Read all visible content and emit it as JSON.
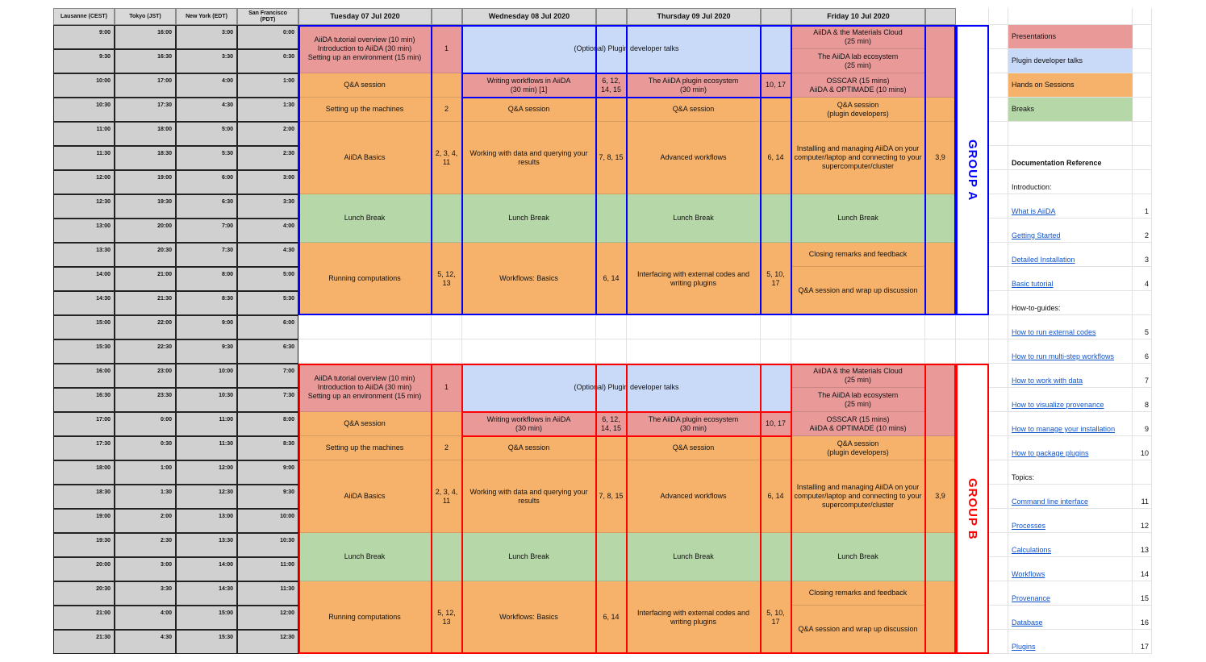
{
  "time_zones": [
    "Lausanne (CEST)",
    "Tokyo (JST)",
    "New York (EDT)",
    "San Francisco\n(PDT)"
  ],
  "days": [
    "Tuesday 07 Jul 2020",
    "Wednesday 08 Jul 2020",
    "Thursday 09 Jul 2020",
    "Friday 10 Jul 2020"
  ],
  "time_rows": [
    [
      "9:00",
      "16:00",
      "3:00",
      "0:00"
    ],
    [
      "9:30",
      "16:30",
      "3:30",
      "0:30"
    ],
    [
      "10:00",
      "17:00",
      "4:00",
      "1:00"
    ],
    [
      "10:30",
      "17:30",
      "4:30",
      "1:30"
    ],
    [
      "11:00",
      "18:00",
      "5:00",
      "2:00"
    ],
    [
      "11:30",
      "18:30",
      "5:30",
      "2:30"
    ],
    [
      "12:00",
      "19:00",
      "6:00",
      "3:00"
    ],
    [
      "12:30",
      "19:30",
      "6:30",
      "3:30"
    ],
    [
      "13:00",
      "20:00",
      "7:00",
      "4:00"
    ],
    [
      "13:30",
      "20:30",
      "7:30",
      "4:30"
    ],
    [
      "14:00",
      "21:00",
      "8:00",
      "5:00"
    ],
    [
      "14:30",
      "21:30",
      "8:30",
      "5:30"
    ],
    [
      "15:00",
      "22:00",
      "9:00",
      "6:00"
    ],
    [
      "15:30",
      "22:30",
      "9:30",
      "6:30"
    ],
    [
      "16:00",
      "23:00",
      "10:00",
      "7:00"
    ],
    [
      "16:30",
      "23:30",
      "10:30",
      "7:30"
    ],
    [
      "17:00",
      "0:00",
      "11:00",
      "8:00"
    ],
    [
      "17:30",
      "0:30",
      "11:30",
      "8:30"
    ],
    [
      "18:00",
      "1:00",
      "12:00",
      "9:00"
    ],
    [
      "18:30",
      "1:30",
      "12:30",
      "9:30"
    ],
    [
      "19:00",
      "2:00",
      "13:00",
      "10:00"
    ],
    [
      "19:30",
      "2:30",
      "13:30",
      "10:30"
    ],
    [
      "20:00",
      "3:00",
      "14:00",
      "11:00"
    ],
    [
      "20:30",
      "3:30",
      "14:30",
      "11:30"
    ],
    [
      "21:00",
      "4:00",
      "15:00",
      "12:00"
    ],
    [
      "21:30",
      "4:30",
      "15:30",
      "12:30"
    ]
  ],
  "legend": [
    {
      "label": "Presentations",
      "color": "#ea9999"
    },
    {
      "label": "Plugin developer talks",
      "color": "#c9daf8"
    },
    {
      "label": "Hands on Sessions",
      "color": "#f6b26b"
    },
    {
      "label": "Breaks",
      "color": "#b6d7a8"
    }
  ],
  "groups": [
    {
      "label": "GROUP A",
      "color": "#0000ff",
      "cells": [
        "AiiDA tutorial overview (10 min)\nIntroduction to AiiDA (30 min)\nSetting up an environment (15 min)",
        "1",
        "(Optional) Plugin developer talks",
        "AiiDA & the Materials Cloud\n(25 min)",
        "The AiiDA lab ecosystem\n(25 min)",
        "Q&A session",
        "Writing workflows in AiiDA\n(30 min) [1]",
        "6, 12, 14, 15",
        "The AiiDA plugin ecosystem\n(30 min)",
        "10, 17",
        "OSSCAR (15 mins)\nAiiDA & OPTIMADE (10 mins)",
        "Setting up the machines",
        "2",
        "Q&A session",
        "Q&A session",
        "Q&A session\n(plugin developers)",
        "AiiDA Basics",
        "2, 3, 4, 11",
        "Working with data and querying your results",
        "7, 8, 15",
        "Advanced workflows",
        "6, 14",
        "Installing and managing AiiDA on your computer/laptop and connecting to your supercomputer/cluster",
        "3,9",
        "Lunch Break",
        "Lunch Break",
        "Lunch Break",
        "Lunch Break",
        "Running computations",
        "5, 12, 13",
        "Workflows: Basics",
        "6, 14",
        "Interfacing with external codes and writing plugins",
        "5, 10, 17",
        "Closing remarks and feedback",
        "Q&A session and wrap up discussion"
      ]
    },
    {
      "label": "GROUP B",
      "color": "#ff0000",
      "cells": [
        "AiiDA tutorial overview (10 min)\nIntroduction to AiiDA (30 min)\nSetting up an environment (15 min)",
        "1",
        "(Optional) Plugin developer talks",
        "AiiDA & the Materials Cloud\n(25 min)",
        "The AiiDA lab ecosystem\n(25 min)",
        "Q&A session",
        "Writing workflows in AiiDA\n(30 min)",
        "6, 12, 14, 15",
        "The AiiDA plugin ecosystem\n(30 min)",
        "10, 17",
        "OSSCAR (15 mins)\nAiiDA & OPTIMADE (10 mins)",
        "Setting up the machines",
        "2",
        "Q&A session",
        "Q&A session",
        "Q&A session\n(plugin developers)",
        "AiiDA Basics",
        "2, 3, 4, 11",
        "Working with data and querying your results",
        "7, 8, 15",
        "Advanced workflows",
        "6, 14",
        "Installing and managing AiiDA on your computer/laptop and connecting to your supercomputer/cluster",
        "3,9",
        "Lunch Break",
        "Lunch Break",
        "Lunch Break",
        "Lunch Break",
        "Running computations",
        "5, 12, 13",
        "Workflows: Basics",
        "6, 14",
        "Interfacing with external codes and writing plugins",
        "5, 10, 17",
        "Closing remarks and feedback",
        "Q&A session and wrap up discussion"
      ]
    }
  ],
  "documentation": {
    "title": "Documentation Reference",
    "sections": [
      {
        "heading": "Introduction:",
        "links": [
          {
            "text": "What is AiiDA",
            "ref": 1
          },
          {
            "text": "Getting Started",
            "ref": 2
          },
          {
            "text": "Detailed Installation",
            "ref": 3
          },
          {
            "text": "Basic tutorial",
            "ref": 4
          }
        ]
      },
      {
        "heading": "How-to-guides:",
        "links": [
          {
            "text": "How to run external codes",
            "ref": 5
          },
          {
            "text": "How to run multi-step workflows",
            "ref": 6
          },
          {
            "text": "How to work with data",
            "ref": 7
          },
          {
            "text": "How to visualize provenance",
            "ref": 8
          },
          {
            "text": "How to manage your installation",
            "ref": 9
          },
          {
            "text": "How to package plugins",
            "ref": 10
          }
        ]
      },
      {
        "heading": "Topics:",
        "links": [
          {
            "text": "Command line interface",
            "ref": 11
          },
          {
            "text": "Processes",
            "ref": 12
          },
          {
            "text": "Calculations",
            "ref": 13
          },
          {
            "text": "Workflows",
            "ref": 14
          },
          {
            "text": "Provenance",
            "ref": 15
          },
          {
            "text": "Database",
            "ref": 16
          },
          {
            "text": "Plugins",
            "ref": 17
          }
        ]
      }
    ]
  }
}
